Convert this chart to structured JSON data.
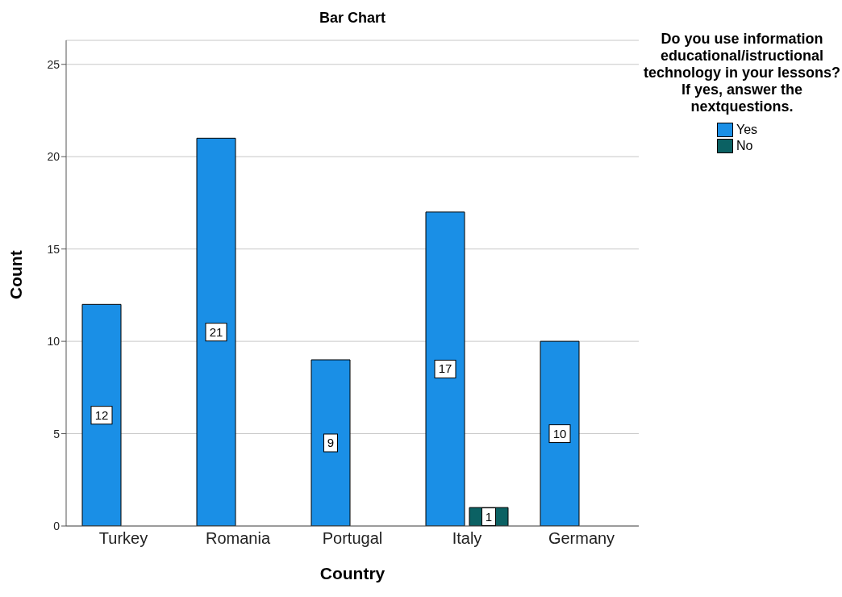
{
  "chart_data": {
    "type": "bar",
    "title": "Bar Chart",
    "xlabel": "Country",
    "ylabel": "Count",
    "legend_title": "Do you use information educational/istructional technology in your lessons? If yes, answer the nextquestions.",
    "categories": [
      "Turkey",
      "Romania",
      "Portugal",
      "Italy",
      "Germany"
    ],
    "series": [
      {
        "name": "Yes",
        "color": "#1a8fe6",
        "values": [
          12,
          21,
          9,
          17,
          10
        ]
      },
      {
        "name": "No",
        "color": "#0b6163",
        "values": [
          null,
          null,
          null,
          1,
          null
        ]
      }
    ],
    "ylim": [
      0,
      26.3
    ],
    "yticks": [
      0,
      5,
      10,
      15,
      20,
      25
    ],
    "grid": "y",
    "legend": "top right",
    "data_labels": true
  }
}
